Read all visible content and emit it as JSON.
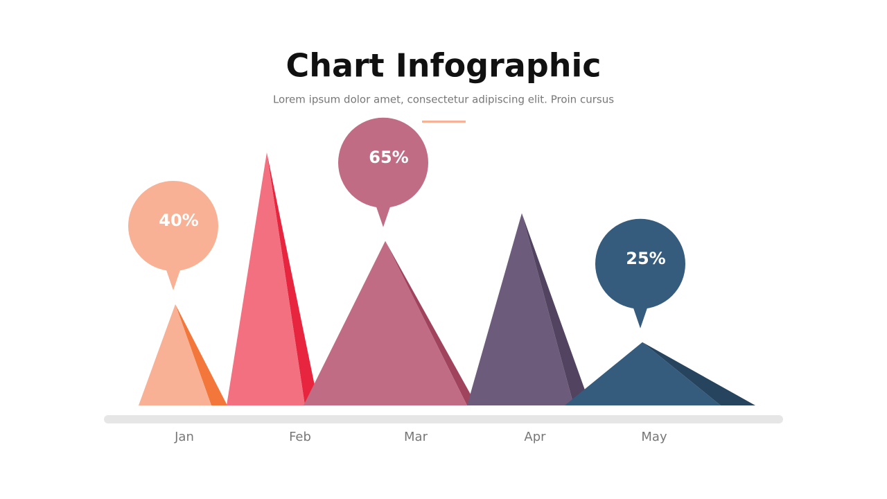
{
  "chart_data": {
    "type": "pyramid",
    "title": "Chart Infographic",
    "subtitle": "Lorem ipsum dolor amet, consectetur adipiscing elit. Proin cursus",
    "categories": [
      "Jan",
      "Feb",
      "Mar",
      "Apr",
      "May"
    ],
    "values": [
      40,
      100,
      65,
      76,
      25
    ],
    "value_labels": [
      "40%",
      null,
      "65%",
      null,
      "25%"
    ],
    "colors": [
      "#f8b195",
      "#f2707f",
      "#c06c84",
      "#6c5b7b",
      "#355c7d"
    ],
    "shade_colors": [
      "#f3763b",
      "#e8253e",
      "#a0445e",
      "#524460",
      "#27445e"
    ],
    "ylim": [
      0,
      100
    ]
  }
}
